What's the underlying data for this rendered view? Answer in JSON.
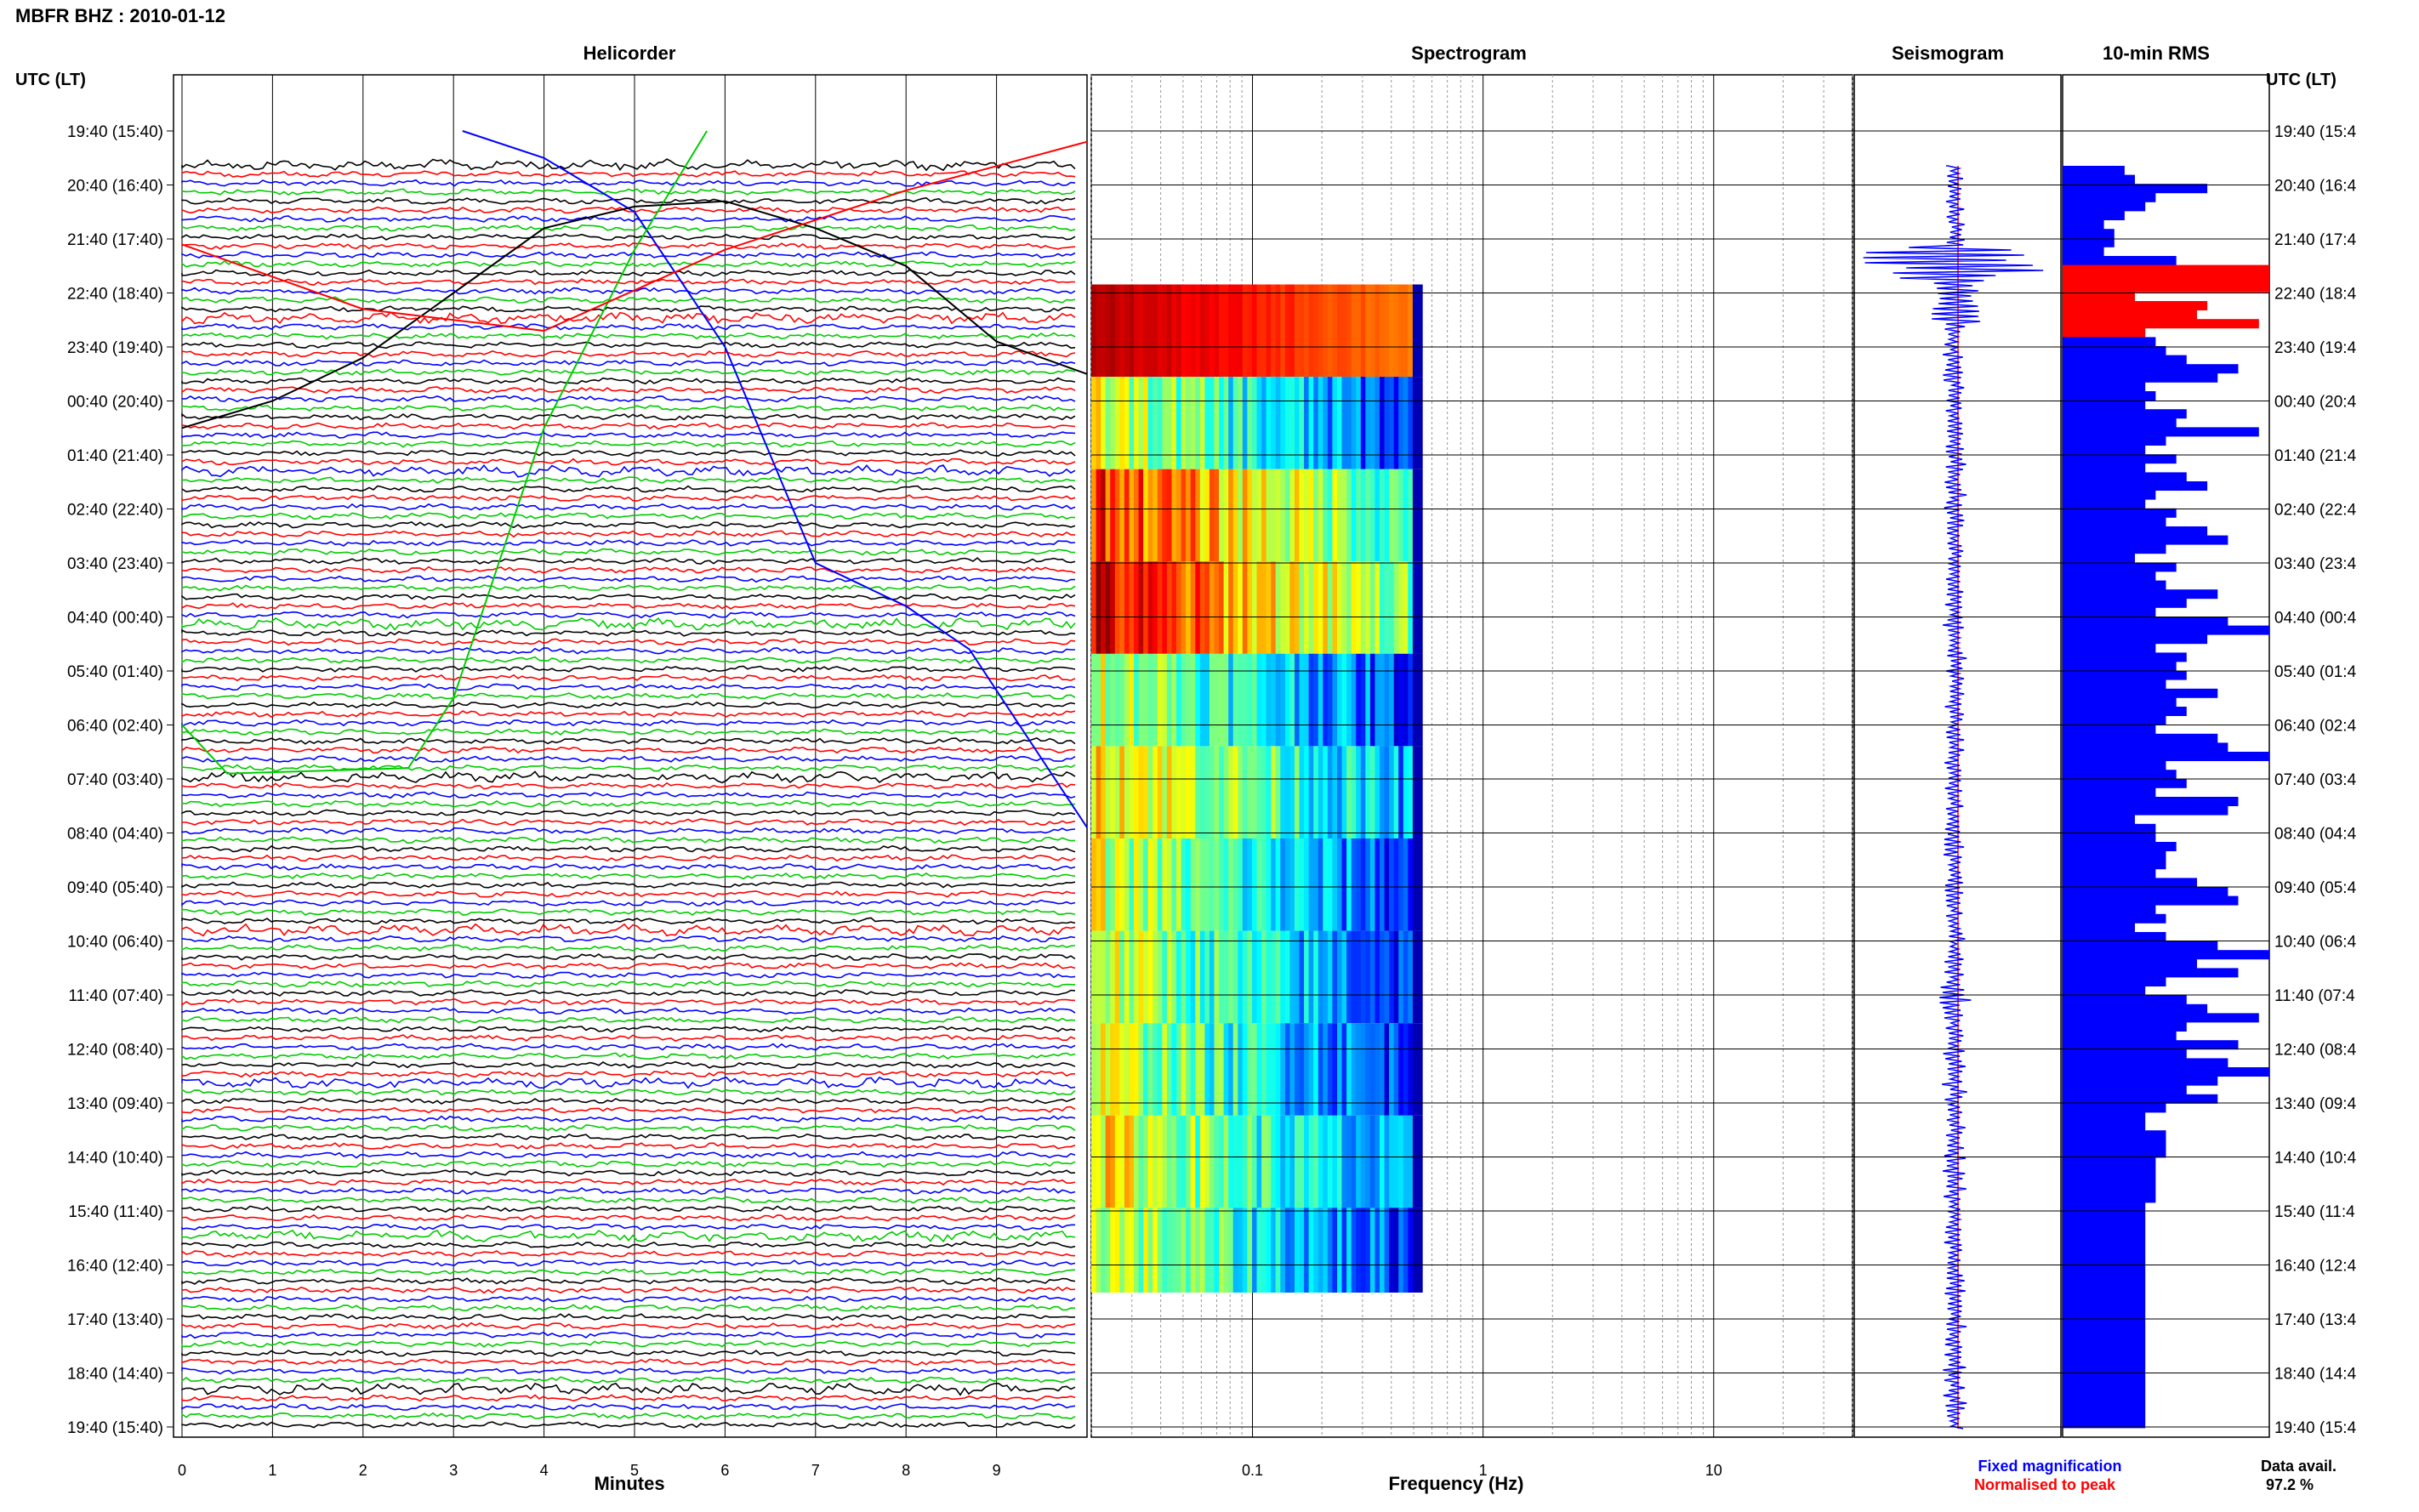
{
  "page_title": "MBFR BHZ : 2010-01-12",
  "panels": {
    "helicorder": "Helicorder",
    "spectrogram": "Spectrogram",
    "seismogram": "Seismogram",
    "rms": "10-min RMS"
  },
  "y_axis_label_left": "UTC (LT)",
  "y_axis_label_right": "UTC (LT)",
  "time_labels_left": [
    "19:40 (15:40)",
    "20:40 (16:40)",
    "21:40 (17:40)",
    "22:40 (18:40)",
    "23:40 (19:40)",
    "00:40 (20:40)",
    "01:40 (21:40)",
    "02:40 (22:40)",
    "03:40 (23:40)",
    "04:40 (00:40)",
    "05:40 (01:40)",
    "06:40 (02:40)",
    "07:40 (03:40)",
    "08:40 (04:40)",
    "09:40 (05:40)",
    "10:40 (06:40)",
    "11:40 (07:40)",
    "12:40 (08:40)",
    "13:40 (09:40)",
    "14:40 (10:40)",
    "15:40 (11:40)",
    "16:40 (12:40)",
    "17:40 (13:40)",
    "18:40 (14:40)",
    "19:40 (15:40)"
  ],
  "time_labels_right": [
    "19:40 (15:4",
    "20:40 (16:4",
    "21:40 (17:4",
    "22:40 (18:4",
    "23:40 (19:4",
    "00:40 (20:4",
    "01:40 (21:4",
    "02:40 (22:4",
    "03:40 (23:4",
    "04:40 (00:4",
    "05:40 (01:4",
    "06:40 (02:4",
    "07:40 (03:4",
    "08:40 (04:4",
    "09:40 (05:4",
    "10:40 (06:4",
    "11:40 (07:4",
    "12:40 (08:4",
    "13:40 (09:4",
    "14:40 (10:4",
    "15:40 (11:4",
    "16:40 (12:4",
    "17:40 (13:4",
    "18:40 (14:4",
    "19:40 (15:4"
  ],
  "x_axis": {
    "helicorder_label": "Minutes",
    "helicorder_ticks": [
      "0",
      "1",
      "2",
      "3",
      "4",
      "5",
      "6",
      "7",
      "8",
      "9"
    ],
    "spectrogram_label": "Frequency (Hz)",
    "spectrogram_ticks": [
      "0.1",
      "1",
      "10"
    ]
  },
  "legend": {
    "fixed": "Fixed magnification",
    "normalised": "Normalised to peak",
    "fixed_color": "#0000ff",
    "normalised_color": "#ff0000"
  },
  "data_avail": {
    "label": "Data avail.",
    "value": "97.2 %"
  },
  "colors": {
    "trace_cycle": [
      "#000000",
      "#ff0000",
      "#0000ff",
      "#00cc00"
    ],
    "rms_bar": "#0000ff",
    "rms_peak": "#ff0000"
  },
  "chart_data": [
    {
      "type": "line",
      "title": "Helicorder",
      "xlabel": "Minutes",
      "xlim": [
        0,
        10
      ],
      "ylabel": "UTC (LT)",
      "rows_per_hour": 6,
      "hours_shown": 24,
      "y_ticks": [
        "19:40",
        "20:40",
        "21:40",
        "22:40",
        "23:40",
        "00:40",
        "01:40",
        "02:40",
        "03:40",
        "04:40",
        "05:40",
        "06:40",
        "07:40",
        "08:40",
        "09:40",
        "10:40",
        "11:40",
        "12:40",
        "13:40",
        "14:40",
        "15:40",
        "16:40",
        "17:40",
        "18:40",
        "19:40"
      ],
      "note_series": [
        {
          "color": "#0000ff",
          "x": [
            3.1,
            4,
            5,
            6,
            7,
            8,
            8.7,
            10
          ],
          "y_hour": [
            0,
            0.5,
            1.5,
            4,
            8,
            8.8,
            9.6,
            12.9
          ]
        },
        {
          "color": "#00cc00",
          "x": [
            0,
            0.5,
            2.5,
            3,
            4,
            5,
            5.8
          ],
          "y_hour": [
            11,
            11.9,
            11.8,
            10.5,
            5.5,
            2.2,
            0
          ]
        },
        {
          "color": "#000000",
          "x": [
            0,
            1,
            2,
            3,
            4,
            5,
            6,
            7,
            8,
            9,
            10
          ],
          "y_hour": [
            5.5,
            5,
            4.2,
            3,
            1.8,
            1.4,
            1.3,
            1.8,
            2.5,
            3.9,
            4.5
          ]
        },
        {
          "color": "#ff0000",
          "x": [
            0,
            2,
            4,
            6,
            8,
            10
          ],
          "y_hour": [
            2.1,
            3.3,
            3.7,
            2.2,
            1.1,
            0.2
          ]
        }
      ]
    },
    {
      "type": "heatmap",
      "title": "Spectrogram",
      "xlabel": "Frequency (Hz)",
      "xscale": "log",
      "xlim": [
        0.02,
        40
      ],
      "data_freq_range": [
        0.02,
        0.5
      ],
      "block_levels": [
        0.98,
        0.35,
        0.6,
        0.65,
        0.35,
        0.45,
        0.35,
        0.35,
        0.35,
        0.4,
        0.35
      ]
    },
    {
      "type": "line",
      "title": "Seismogram",
      "series": [
        {
          "name": "Fixed magnification",
          "color": "#0000ff"
        },
        {
          "name": "Normalised to peak",
          "color": "#ff0000"
        }
      ]
    },
    {
      "type": "bar",
      "title": "10-min RMS",
      "orientation": "horizontal",
      "values": [
        0.3,
        0.35,
        0.7,
        0.45,
        0.4,
        0.3,
        0.2,
        0.25,
        0.25,
        0.2,
        0.55,
        1.0,
        1.0,
        1.0,
        0.35,
        0.7,
        0.65,
        0.95,
        0.4,
        0.45,
        0.5,
        0.6,
        0.85,
        0.75,
        0.4,
        0.45,
        0.4,
        0.6,
        0.55,
        0.95,
        0.5,
        0.4,
        0.55,
        0.4,
        0.6,
        0.7,
        0.45,
        0.4,
        0.55,
        0.5,
        0.7,
        0.8,
        0.5,
        0.35,
        0.55,
        0.45,
        0.5,
        0.75,
        0.6,
        0.45,
        0.8,
        1.0,
        0.7,
        0.45,
        0.6,
        0.55,
        0.6,
        0.5,
        0.75,
        0.55,
        0.6,
        0.5,
        0.45,
        0.75,
        0.8,
        1.0,
        0.5,
        0.55,
        0.6,
        0.45,
        0.85,
        0.8,
        0.35,
        0.45,
        0.45,
        0.55,
        0.5,
        0.5,
        0.45,
        0.65,
        0.8,
        0.85,
        0.45,
        0.5,
        0.35,
        0.5,
        0.75,
        1.0,
        0.65,
        0.85,
        0.5,
        0.4,
        0.6,
        0.7,
        0.95,
        0.6,
        0.55,
        0.85,
        0.6,
        0.8,
        1.0,
        0.75,
        0.6,
        0.75,
        0.5,
        0.4,
        0.4,
        0.5,
        0.5,
        0.5,
        0.45,
        0.45,
        0.45,
        0.45,
        0.45,
        0.4,
        0.4,
        0.4,
        0.4,
        0.4,
        0.4,
        0.4,
        0.4,
        0.4,
        0.4,
        0.4,
        0.4,
        0.4,
        0.4,
        0.4,
        0.4,
        0.4,
        0.4,
        0.4,
        0.4,
        0.4,
        0.4,
        0.4,
        0.4,
        0.4,
        0.4,
        0.4,
        0.4,
        0.4
      ],
      "peak_rows": [
        11,
        12,
        13,
        14,
        15,
        16,
        17,
        18
      ]
    }
  ]
}
